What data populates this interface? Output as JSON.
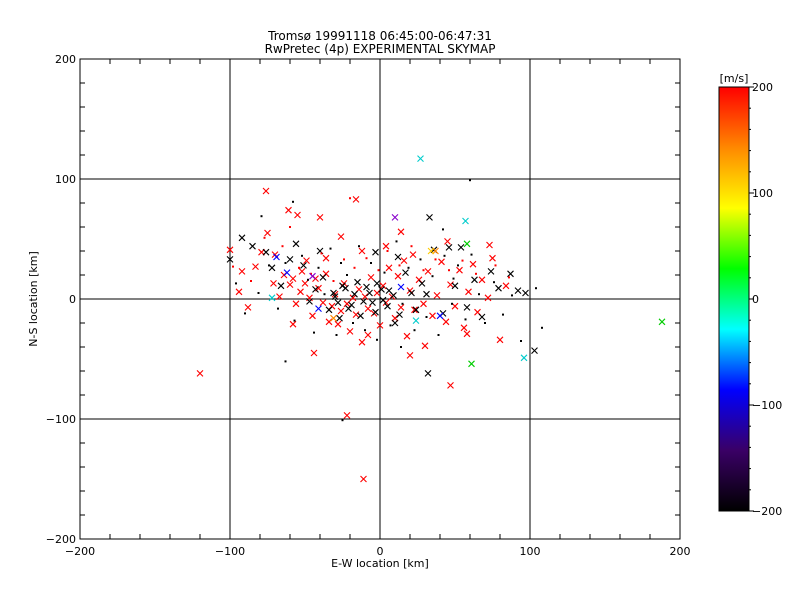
{
  "chart_data": {
    "type": "scatter",
    "title": "Tromsø 19991118 06:45:00-06:47:31",
    "subtitle": "RwPretec (4p) EXPERIMENTAL SKYMAP",
    "xlabel": "E-W location [km]",
    "ylabel": "N-S location [km]",
    "xlim": [
      -200,
      200
    ],
    "ylim": [
      -200,
      200
    ],
    "x_ticks": [
      "−200",
      "−100",
      "0",
      "100",
      "200"
    ],
    "y_ticks": [
      "200",
      "100",
      "0",
      "−100",
      "−200"
    ],
    "grid": true,
    "colorbar": {
      "label": "[m/s]",
      "range": [
        -200,
        200
      ],
      "ticks": [
        "200",
        "100",
        "0",
        "−100",
        "−200"
      ],
      "colormap": [
        "#000000",
        "#3a0066",
        "#0000ff",
        "#00ffff",
        "#00ff00",
        "#ffff00",
        "#ff8800",
        "#ff0000"
      ]
    },
    "series": [
      {
        "marker": "x",
        "color": "#ff0000",
        "points": [
          [
            -76,
            90
          ],
          [
            -61,
            74
          ],
          [
            -55,
            70
          ],
          [
            -40,
            68
          ],
          [
            -16,
            83
          ],
          [
            -100,
            41
          ],
          [
            -94,
            6
          ],
          [
            -92,
            23
          ],
          [
            -83,
            27
          ],
          [
            -79,
            39
          ],
          [
            -75,
            55
          ],
          [
            -71,
            13
          ],
          [
            -67,
            2
          ],
          [
            -64,
            20
          ],
          [
            -60,
            12
          ],
          [
            -58,
            17
          ],
          [
            -56,
            -4
          ],
          [
            -53,
            6
          ],
          [
            -52,
            23
          ],
          [
            -50,
            13
          ],
          [
            -49,
            32
          ],
          [
            -47,
            1
          ],
          [
            -45,
            -14
          ],
          [
            -43,
            17
          ],
          [
            -41,
            9
          ],
          [
            -38,
            -3
          ],
          [
            -36,
            21
          ],
          [
            -34,
            -19
          ],
          [
            -32,
            -6
          ],
          [
            -30,
            4
          ],
          [
            -28,
            -21
          ],
          [
            -26,
            -10
          ],
          [
            -24,
            13
          ],
          [
            -22,
            -4
          ],
          [
            -20,
            -27
          ],
          [
            -18,
            1
          ],
          [
            -16,
            -13
          ],
          [
            -14,
            8
          ],
          [
            -12,
            -36
          ],
          [
            -10,
            2
          ],
          [
            -8,
            -8
          ],
          [
            -6,
            18
          ],
          [
            -4,
            -12
          ],
          [
            -2,
            5
          ],
          [
            0,
            -22
          ],
          [
            2,
            11
          ],
          [
            4,
            -3
          ],
          [
            6,
            26
          ],
          [
            8,
            2
          ],
          [
            10,
            -16
          ],
          [
            12,
            19
          ],
          [
            14,
            -7
          ],
          [
            16,
            32
          ],
          [
            18,
            -31
          ],
          [
            20,
            7
          ],
          [
            23,
            -9
          ],
          [
            26,
            16
          ],
          [
            29,
            -4
          ],
          [
            32,
            23
          ],
          [
            35,
            -14
          ],
          [
            38,
            3
          ],
          [
            41,
            31
          ],
          [
            44,
            -19
          ],
          [
            47,
            12
          ],
          [
            50,
            -6
          ],
          [
            53,
            24
          ],
          [
            56,
            -24
          ],
          [
            59,
            6
          ],
          [
            62,
            29
          ],
          [
            65,
            -11
          ],
          [
            68,
            16
          ],
          [
            72,
            1
          ],
          [
            75,
            34
          ],
          [
            80,
            -34
          ],
          [
            84,
            11
          ],
          [
            -120,
            -62
          ],
          [
            -22,
            -97
          ],
          [
            -11,
            -150
          ],
          [
            47,
            -72
          ],
          [
            20,
            -47
          ],
          [
            -44,
            -45
          ],
          [
            -26,
            52
          ],
          [
            -12,
            40
          ],
          [
            4,
            44
          ],
          [
            22,
            37
          ],
          [
            45,
            48
          ],
          [
            -58,
            -21
          ],
          [
            -36,
            34
          ],
          [
            -8,
            -30
          ],
          [
            30,
            -39
          ],
          [
            58,
            -29
          ],
          [
            -88,
            -7
          ],
          [
            -70,
            37
          ],
          [
            14,
            56
          ],
          [
            73,
            45
          ]
        ]
      },
      {
        "marker": "x",
        "color": "#000000",
        "points": [
          [
            -100,
            33
          ],
          [
            -92,
            51
          ],
          [
            -85,
            44
          ],
          [
            -76,
            39
          ],
          [
            -72,
            26
          ],
          [
            -66,
            11
          ],
          [
            -60,
            33
          ],
          [
            -56,
            46
          ],
          [
            -51,
            28
          ],
          [
            -47,
            -2
          ],
          [
            -43,
            8
          ],
          [
            -38,
            18
          ],
          [
            -34,
            -9
          ],
          [
            -30,
            2
          ],
          [
            -27,
            -16
          ],
          [
            -23,
            9
          ],
          [
            -19,
            -5
          ],
          [
            -15,
            14
          ],
          [
            -11,
            -2
          ],
          [
            -7,
            5
          ],
          [
            -3,
            -11
          ],
          [
            1,
            8
          ],
          [
            5,
            -6
          ],
          [
            9,
            3
          ],
          [
            13,
            -13
          ],
          [
            17,
            22
          ],
          [
            21,
            5
          ],
          [
            24,
            -9
          ],
          [
            28,
            13
          ],
          [
            31,
            4
          ],
          [
            33,
            68
          ],
          [
            36,
            41
          ],
          [
            42,
            -12
          ],
          [
            46,
            43
          ],
          [
            50,
            11
          ],
          [
            54,
            43
          ],
          [
            58,
            -7
          ],
          [
            63,
            16
          ],
          [
            68,
            -15
          ],
          [
            74,
            23
          ],
          [
            79,
            9
          ],
          [
            87,
            21
          ],
          [
            92,
            7
          ],
          [
            97,
            5
          ],
          [
            103,
            -43
          ],
          [
            -31,
            5
          ],
          [
            -28,
            -3
          ],
          [
            -25,
            11
          ],
          [
            -21,
            -8
          ],
          [
            -17,
            4
          ],
          [
            -13,
            -14
          ],
          [
            -9,
            10
          ],
          [
            -5,
            -3
          ],
          [
            -2,
            13
          ],
          [
            2,
            -1
          ],
          [
            6,
            7
          ],
          [
            10,
            -20
          ],
          [
            12,
            35
          ],
          [
            32,
            -62
          ],
          [
            -3,
            39
          ],
          [
            -40,
            40
          ]
        ]
      },
      {
        "marker": "dot",
        "color": "#000000",
        "points": [
          [
            -96,
            13
          ],
          [
            -90,
            -12
          ],
          [
            -81,
            5
          ],
          [
            -74,
            28
          ],
          [
            -68,
            -8
          ],
          [
            -63,
            30
          ],
          [
            -57,
            -18
          ],
          [
            -52,
            36
          ],
          [
            -48,
            16
          ],
          [
            -44,
            -28
          ],
          [
            -41,
            26
          ],
          [
            -37,
            4
          ],
          [
            -33,
            42
          ],
          [
            -29,
            -30
          ],
          [
            -26,
            30
          ],
          [
            -22,
            20
          ],
          [
            -18,
            -20
          ],
          [
            -14,
            44
          ],
          [
            -10,
            -26
          ],
          [
            -6,
            30
          ],
          [
            -2,
            -34
          ],
          [
            3,
            22
          ],
          [
            7,
            -22
          ],
          [
            11,
            48
          ],
          [
            15,
            -4
          ],
          [
            19,
            26
          ],
          [
            23,
            -26
          ],
          [
            27,
            33
          ],
          [
            31,
            -15
          ],
          [
            35,
            19
          ],
          [
            39,
            -30
          ],
          [
            43,
            36
          ],
          [
            48,
            -4
          ],
          [
            52,
            28
          ],
          [
            57,
            -17
          ],
          [
            61,
            37
          ],
          [
            66,
            4
          ],
          [
            70,
            -20
          ],
          [
            76,
            14
          ],
          [
            82,
            -13
          ],
          [
            88,
            3
          ],
          [
            94,
            -35
          ],
          [
            104,
            9
          ],
          [
            108,
            -24
          ],
          [
            -58,
            81
          ],
          [
            60,
            99
          ],
          [
            -63,
            -52
          ],
          [
            -25,
            -101
          ],
          [
            14,
            -40
          ],
          [
            49,
            17
          ],
          [
            -79,
            69
          ],
          [
            42,
            58
          ]
        ]
      },
      {
        "marker": "dot",
        "color": "#ff0000",
        "points": [
          [
            -98,
            27
          ],
          [
            -86,
            15
          ],
          [
            -77,
            51
          ],
          [
            -65,
            44
          ],
          [
            -54,
            26
          ],
          [
            -46,
            21
          ],
          [
            -39,
            38
          ],
          [
            -31,
            15
          ],
          [
            -24,
            33
          ],
          [
            -17,
            26
          ],
          [
            -9,
            34
          ],
          [
            -1,
            24
          ],
          [
            5,
            40
          ],
          [
            13,
            28
          ],
          [
            21,
            44
          ],
          [
            29,
            24
          ],
          [
            37,
            33
          ],
          [
            46,
            24
          ],
          [
            55,
            32
          ],
          [
            64,
            21
          ],
          [
            77,
            28
          ],
          [
            86,
            18
          ],
          [
            -20,
            84
          ],
          [
            -60,
            60
          ]
        ]
      },
      {
        "marker": "x",
        "color": "#00cccc",
        "points": [
          [
            27,
            117
          ],
          [
            57,
            65
          ],
          [
            96,
            -49
          ],
          [
            -72,
            1
          ],
          [
            24,
            -18
          ]
        ]
      },
      {
        "marker": "x",
        "color": "#00cc00",
        "points": [
          [
            188,
            -19
          ],
          [
            61,
            -54
          ],
          [
            58,
            46
          ]
        ]
      },
      {
        "marker": "x",
        "color": "#0000ff",
        "points": [
          [
            -69,
            35
          ],
          [
            -62,
            22
          ],
          [
            40,
            -14
          ],
          [
            -41,
            -8
          ],
          [
            14,
            10
          ]
        ]
      },
      {
        "marker": "x",
        "color": "#8800cc",
        "points": [
          [
            10,
            68
          ],
          [
            -45,
            19
          ]
        ]
      },
      {
        "marker": "x",
        "color": "#ff8800",
        "points": [
          [
            37,
            40
          ],
          [
            -31,
            -16
          ]
        ]
      },
      {
        "marker": "x",
        "color": "#ffcc00",
        "points": [
          [
            34,
            40
          ]
        ]
      }
    ]
  }
}
